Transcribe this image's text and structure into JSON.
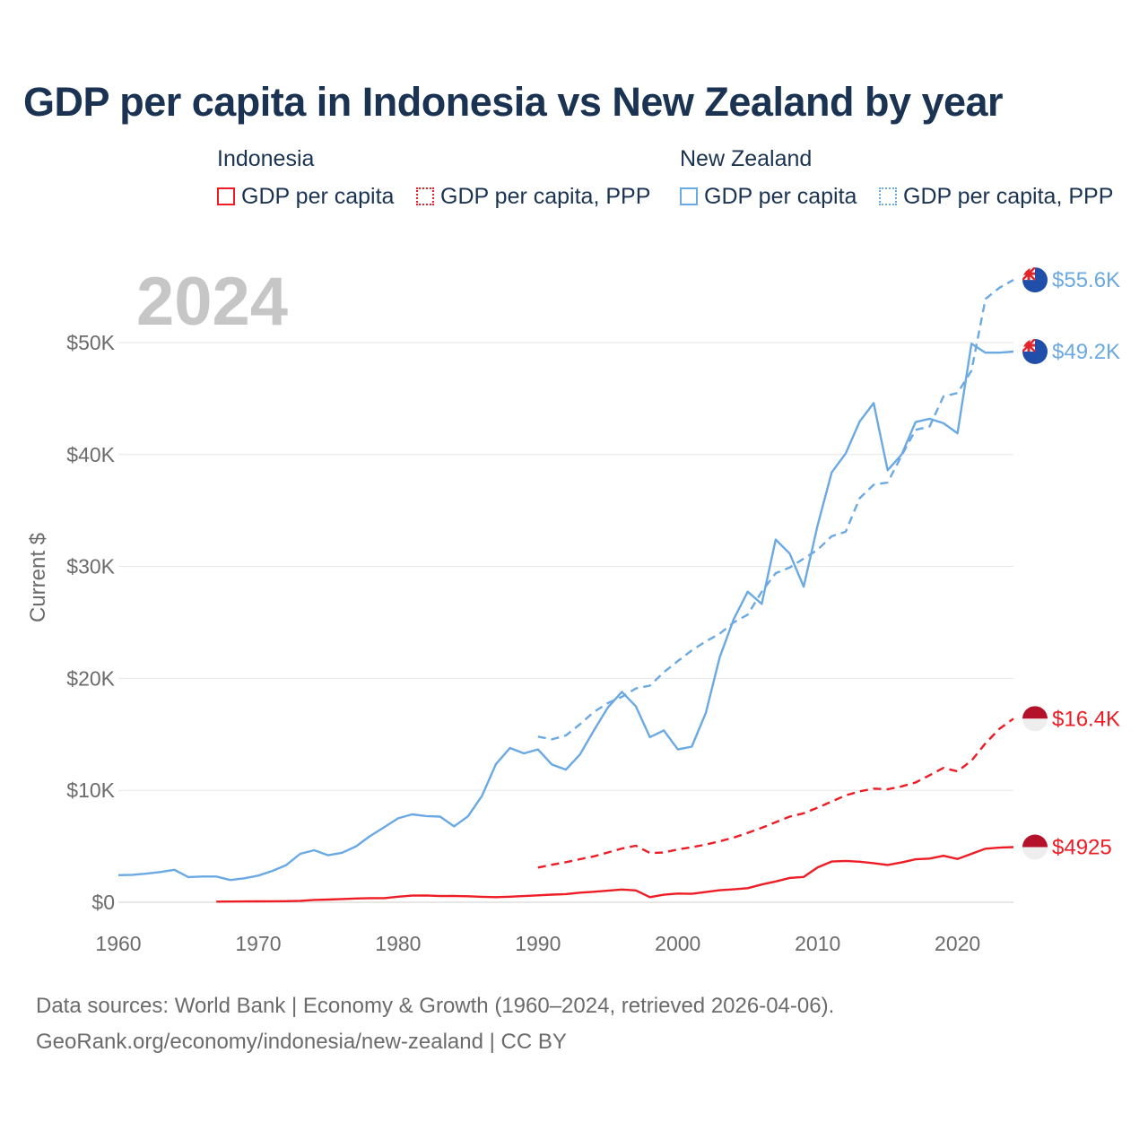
{
  "title": "GDP per capita in Indonesia vs New Zealand by year",
  "legend": {
    "groups": [
      {
        "country": "Indonesia",
        "color": "#ee1c25",
        "items": [
          {
            "label": "GDP per capita",
            "style": "solid"
          },
          {
            "label": "GDP per capita, PPP",
            "style": "dotted"
          }
        ]
      },
      {
        "country": "New Zealand",
        "color": "#6aa9e3",
        "items": [
          {
            "label": "GDP per capita",
            "style": "solid"
          },
          {
            "label": "GDP per capita, PPP",
            "style": "dotted"
          }
        ]
      }
    ]
  },
  "year_watermark": "2024",
  "sources": {
    "line1": "Data sources: World Bank | Economy & Growth (1960–2024, retrieved 2026-04-06).",
    "line2": "GeoRank.org/economy/indonesia/new-zealand | CC BY"
  },
  "chart_data": {
    "type": "line",
    "title": "GDP per capita in Indonesia vs New Zealand by year",
    "xlabel": "",
    "ylabel": "Current $",
    "xlim": [
      1960,
      2024
    ],
    "ylim": [
      0,
      55000
    ],
    "x_ticks": [
      1960,
      1970,
      1980,
      1990,
      2000,
      2010,
      2020
    ],
    "y_ticks": [
      0,
      10000,
      20000,
      30000,
      40000,
      50000
    ],
    "y_tick_labels": [
      "$0",
      "$10K",
      "$20K",
      "$30K",
      "$40K",
      "$50K"
    ],
    "grid": true,
    "series": [
      {
        "name": "New Zealand GDP per capita",
        "country": "New Zealand",
        "color": "#6aa9e3",
        "dash": "solid",
        "end_label": "$49.2K",
        "points": [
          [
            1960,
            2420
          ],
          [
            1961,
            2450
          ],
          [
            1962,
            2560
          ],
          [
            1963,
            2700
          ],
          [
            1964,
            2900
          ],
          [
            1965,
            2250
          ],
          [
            1966,
            2300
          ],
          [
            1967,
            2300
          ],
          [
            1968,
            1990
          ],
          [
            1969,
            2140
          ],
          [
            1970,
            2380
          ],
          [
            1971,
            2800
          ],
          [
            1972,
            3320
          ],
          [
            1973,
            4330
          ],
          [
            1974,
            4650
          ],
          [
            1975,
            4200
          ],
          [
            1976,
            4420
          ],
          [
            1977,
            5000
          ],
          [
            1978,
            5920
          ],
          [
            1979,
            6700
          ],
          [
            1980,
            7500
          ],
          [
            1981,
            7850
          ],
          [
            1982,
            7700
          ],
          [
            1983,
            7650
          ],
          [
            1984,
            6780
          ],
          [
            1985,
            7680
          ],
          [
            1986,
            9500
          ],
          [
            1987,
            12350
          ],
          [
            1988,
            13780
          ],
          [
            1989,
            13300
          ],
          [
            1990,
            13650
          ],
          [
            1991,
            12300
          ],
          [
            1992,
            11850
          ],
          [
            1993,
            13200
          ],
          [
            1994,
            15350
          ],
          [
            1995,
            17400
          ],
          [
            1996,
            18800
          ],
          [
            1997,
            17500
          ],
          [
            1998,
            14750
          ],
          [
            1999,
            15350
          ],
          [
            2000,
            13650
          ],
          [
            2001,
            13900
          ],
          [
            2002,
            16900
          ],
          [
            2003,
            21900
          ],
          [
            2004,
            25300
          ],
          [
            2005,
            27750
          ],
          [
            2006,
            26650
          ],
          [
            2007,
            32400
          ],
          [
            2008,
            31150
          ],
          [
            2009,
            28200
          ],
          [
            2010,
            33700
          ],
          [
            2011,
            38400
          ],
          [
            2012,
            40100
          ],
          [
            2013,
            42950
          ],
          [
            2014,
            44600
          ],
          [
            2015,
            38600
          ],
          [
            2016,
            40000
          ],
          [
            2017,
            42900
          ],
          [
            2018,
            43200
          ],
          [
            2019,
            42800
          ],
          [
            2020,
            41900
          ],
          [
            2021,
            49900
          ],
          [
            2022,
            49100
          ],
          [
            2023,
            49100
          ],
          [
            2024,
            49200
          ]
        ]
      },
      {
        "name": "New Zealand GDP per capita, PPP",
        "country": "New Zealand",
        "color": "#6aa9e3",
        "dash": "dashed",
        "end_label": "$55.6K",
        "points": [
          [
            1990,
            14800
          ],
          [
            1991,
            14550
          ],
          [
            1992,
            14900
          ],
          [
            1993,
            15900
          ],
          [
            1994,
            17000
          ],
          [
            1995,
            17800
          ],
          [
            1996,
            18350
          ],
          [
            1997,
            19100
          ],
          [
            1998,
            19350
          ],
          [
            1999,
            20550
          ],
          [
            2000,
            21550
          ],
          [
            2001,
            22500
          ],
          [
            2002,
            23300
          ],
          [
            2003,
            24000
          ],
          [
            2004,
            25000
          ],
          [
            2005,
            25700
          ],
          [
            2006,
            27750
          ],
          [
            2007,
            29400
          ],
          [
            2008,
            29900
          ],
          [
            2009,
            30700
          ],
          [
            2010,
            31500
          ],
          [
            2011,
            32700
          ],
          [
            2012,
            33100
          ],
          [
            2013,
            36100
          ],
          [
            2014,
            37300
          ],
          [
            2015,
            37500
          ],
          [
            2016,
            39900
          ],
          [
            2017,
            42200
          ],
          [
            2018,
            42500
          ],
          [
            2019,
            45200
          ],
          [
            2020,
            45500
          ],
          [
            2021,
            47500
          ],
          [
            2022,
            53900
          ],
          [
            2023,
            54900
          ],
          [
            2024,
            55600
          ]
        ]
      },
      {
        "name": "Indonesia GDP per capita, PPP",
        "country": "Indonesia",
        "color": "#ee1c25",
        "dash": "dashed",
        "end_label": "$16.4K",
        "points": [
          [
            1990,
            3100
          ],
          [
            1991,
            3350
          ],
          [
            1992,
            3580
          ],
          [
            1993,
            3850
          ],
          [
            1994,
            4100
          ],
          [
            1995,
            4450
          ],
          [
            1996,
            4800
          ],
          [
            1997,
            5050
          ],
          [
            1998,
            4400
          ],
          [
            1999,
            4450
          ],
          [
            2000,
            4720
          ],
          [
            2001,
            4920
          ],
          [
            2002,
            5150
          ],
          [
            2003,
            5450
          ],
          [
            2004,
            5780
          ],
          [
            2005,
            6200
          ],
          [
            2006,
            6650
          ],
          [
            2007,
            7150
          ],
          [
            2008,
            7650
          ],
          [
            2009,
            7950
          ],
          [
            2010,
            8450
          ],
          [
            2011,
            9000
          ],
          [
            2012,
            9550
          ],
          [
            2013,
            9900
          ],
          [
            2014,
            10150
          ],
          [
            2015,
            10100
          ],
          [
            2016,
            10350
          ],
          [
            2017,
            10700
          ],
          [
            2018,
            11350
          ],
          [
            2019,
            12000
          ],
          [
            2020,
            11700
          ],
          [
            2021,
            12650
          ],
          [
            2022,
            14200
          ],
          [
            2023,
            15500
          ],
          [
            2024,
            16400
          ]
        ]
      },
      {
        "name": "Indonesia GDP per capita",
        "country": "Indonesia",
        "color": "#ee1c25",
        "dash": "solid",
        "end_label": "$4925",
        "points": [
          [
            1967,
            60
          ],
          [
            1968,
            65
          ],
          [
            1969,
            75
          ],
          [
            1970,
            80
          ],
          [
            1971,
            85
          ],
          [
            1972,
            95
          ],
          [
            1973,
            130
          ],
          [
            1974,
            210
          ],
          [
            1975,
            240
          ],
          [
            1976,
            290
          ],
          [
            1977,
            340
          ],
          [
            1978,
            370
          ],
          [
            1979,
            370
          ],
          [
            1980,
            500
          ],
          [
            1981,
            590
          ],
          [
            1982,
            610
          ],
          [
            1983,
            550
          ],
          [
            1984,
            560
          ],
          [
            1985,
            540
          ],
          [
            1986,
            490
          ],
          [
            1987,
            460
          ],
          [
            1988,
            500
          ],
          [
            1989,
            550
          ],
          [
            1990,
            620
          ],
          [
            1991,
            680
          ],
          [
            1992,
            730
          ],
          [
            1993,
            860
          ],
          [
            1994,
            940
          ],
          [
            1995,
            1030
          ],
          [
            1996,
            1140
          ],
          [
            1997,
            1060
          ],
          [
            1998,
            460
          ],
          [
            1999,
            670
          ],
          [
            2000,
            780
          ],
          [
            2001,
            750
          ],
          [
            2002,
            910
          ],
          [
            2003,
            1070
          ],
          [
            2004,
            1150
          ],
          [
            2005,
            1260
          ],
          [
            2006,
            1590
          ],
          [
            2007,
            1860
          ],
          [
            2008,
            2170
          ],
          [
            2009,
            2260
          ],
          [
            2010,
            3120
          ],
          [
            2011,
            3640
          ],
          [
            2012,
            3690
          ],
          [
            2013,
            3620
          ],
          [
            2014,
            3490
          ],
          [
            2015,
            3330
          ],
          [
            2016,
            3560
          ],
          [
            2017,
            3840
          ],
          [
            2018,
            3900
          ],
          [
            2019,
            4150
          ],
          [
            2020,
            3870
          ],
          [
            2021,
            4330
          ],
          [
            2022,
            4780
          ],
          [
            2023,
            4880
          ],
          [
            2024,
            4925
          ]
        ]
      }
    ]
  }
}
